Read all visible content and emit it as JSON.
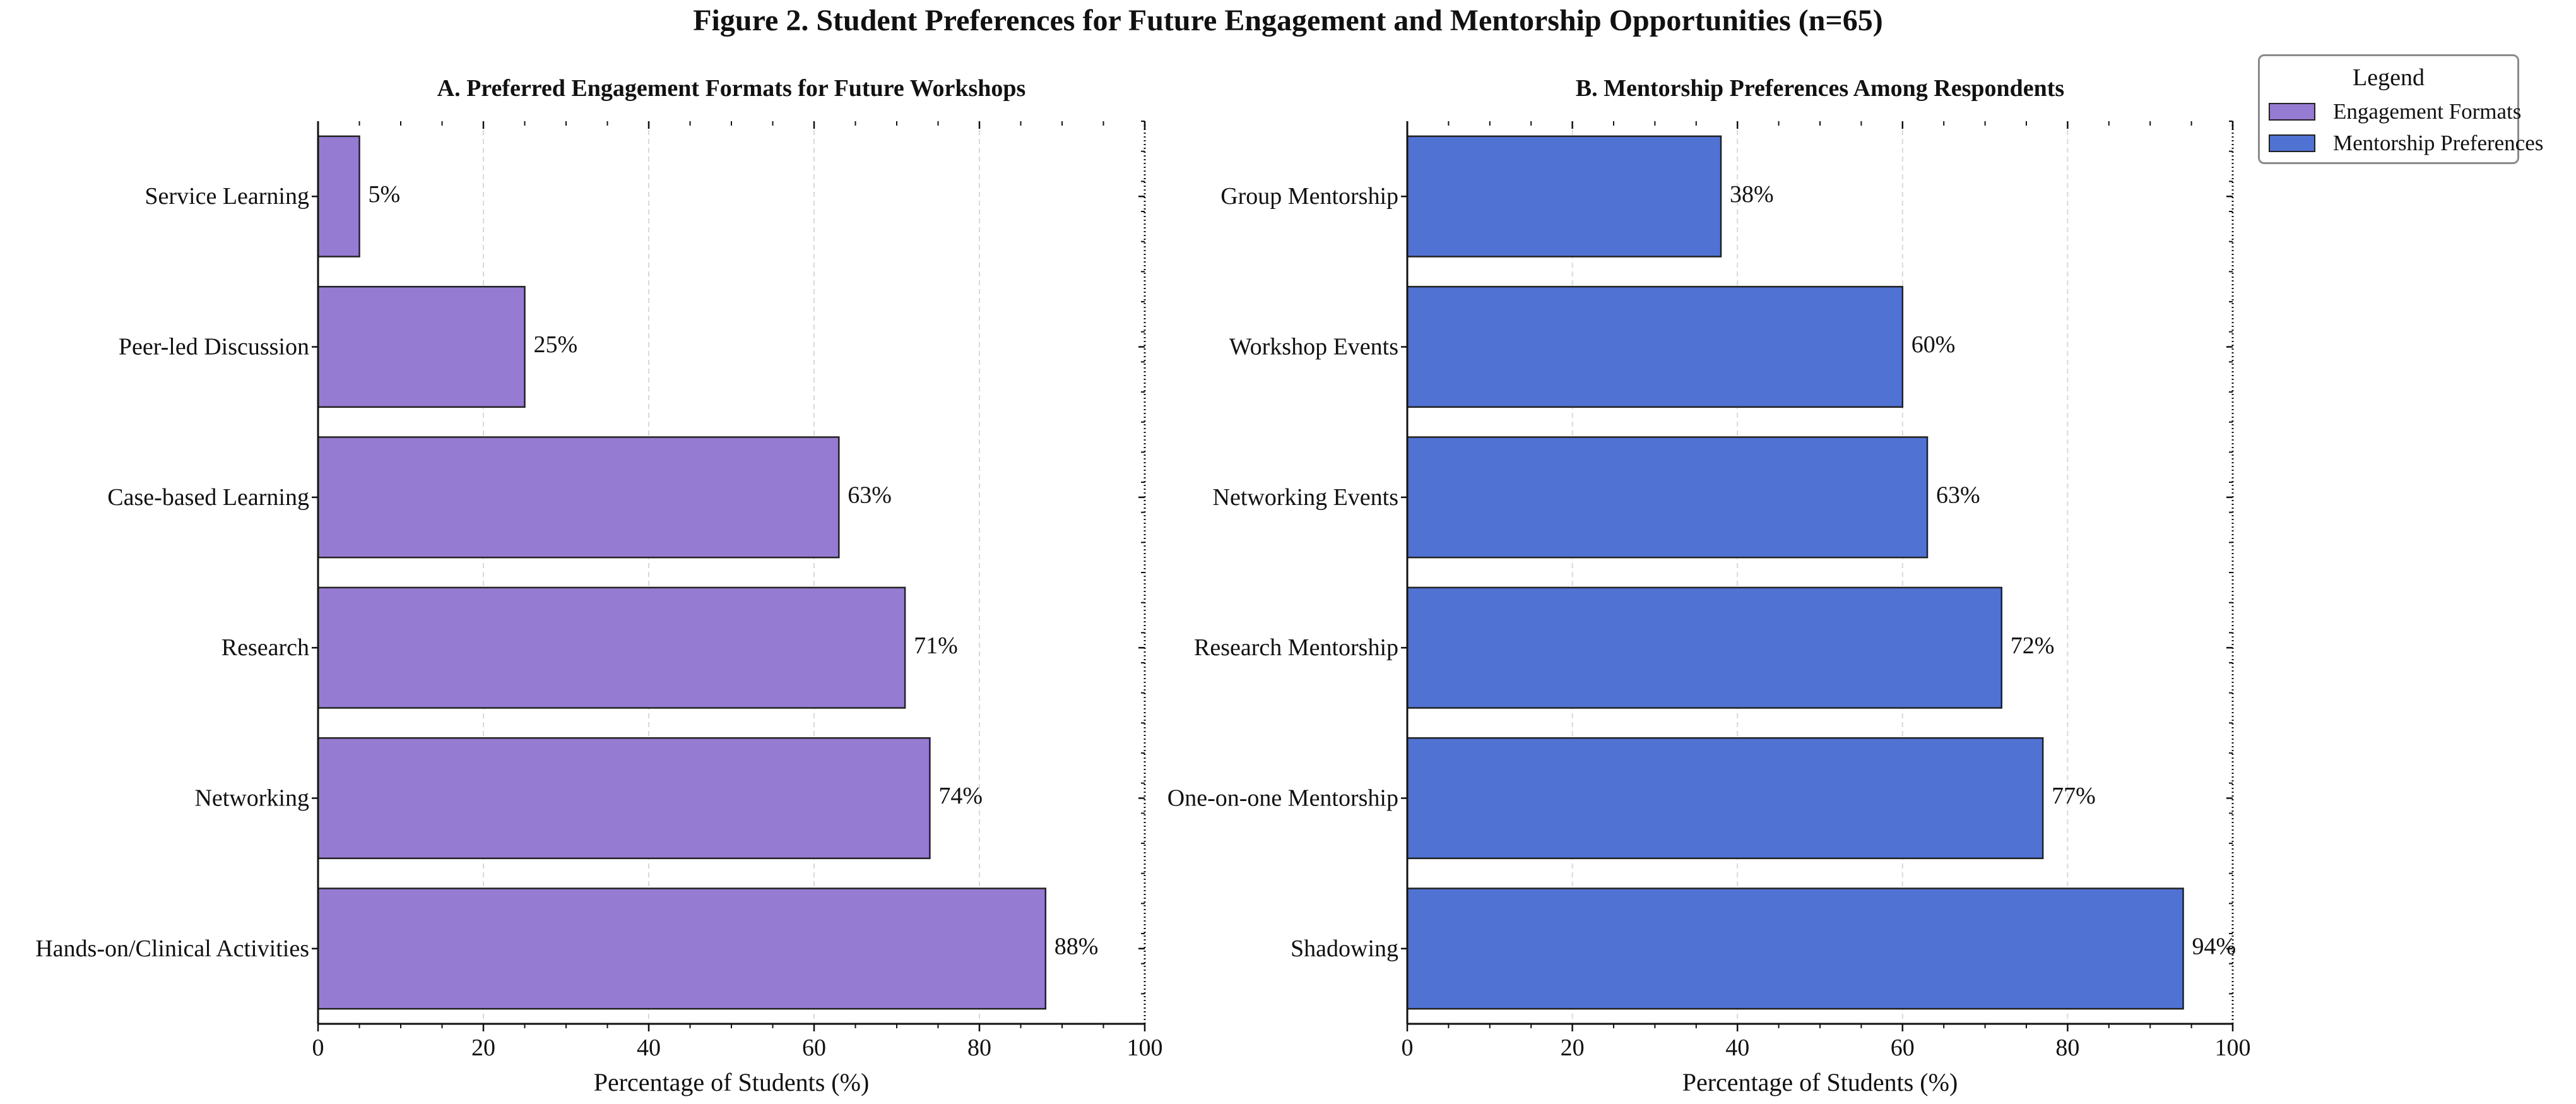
{
  "figure": {
    "title": "Figure 2. Student Preferences for Future Engagement and Mentorship Opportunities (n=65)"
  },
  "legend": {
    "title": "Legend",
    "items": [
      {
        "label": "Engagement Formats",
        "color": "#967BD2"
      },
      {
        "label": "Mentorship Preferences",
        "color": "#5072D3"
      }
    ]
  },
  "chart_data": [
    {
      "type": "bar",
      "orientation": "horizontal",
      "title": "A. Preferred Engagement Formats for Future Workshops",
      "xlabel": "Percentage of Students (%)",
      "ylabel": "",
      "xlim": [
        0,
        100
      ],
      "xticks": [
        "0",
        "20",
        "40",
        "60",
        "80",
        "100"
      ],
      "grid": "vertical dashed",
      "color": "#967BD2",
      "categories": [
        "Service Learning",
        "Peer-led Discussion",
        "Case-based Learning",
        "Research",
        "Networking",
        "Hands-on/Clinical Activities"
      ],
      "values": [
        5,
        25,
        63,
        71,
        74,
        88
      ],
      "data_labels": [
        "5%",
        "25%",
        "63%",
        "71%",
        "74%",
        "88%"
      ]
    },
    {
      "type": "bar",
      "orientation": "horizontal",
      "title": "B. Mentorship Preferences Among Respondents",
      "xlabel": "Percentage of Students (%)",
      "ylabel": "",
      "xlim": [
        0,
        100
      ],
      "xticks": [
        "0",
        "20",
        "40",
        "60",
        "80",
        "100"
      ],
      "grid": "vertical dashed",
      "color": "#5072D3",
      "categories": [
        "Group Mentorship",
        "Workshop Events",
        "Networking Events",
        "Research Mentorship",
        "One-on-one Mentorship",
        "Shadowing"
      ],
      "values": [
        38,
        60,
        63,
        72,
        77,
        94
      ],
      "data_labels": [
        "38%",
        "60%",
        "63%",
        "72%",
        "77%",
        "94%"
      ]
    }
  ]
}
